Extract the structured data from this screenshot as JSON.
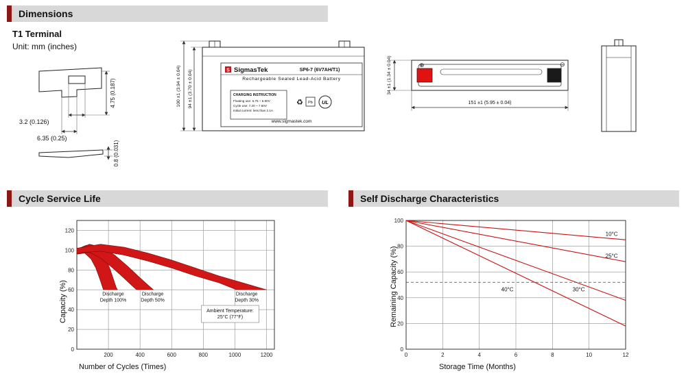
{
  "headers": {
    "dimensions": "Dimensions",
    "cycle": "Cycle Service Life",
    "self_discharge": "Self Discharge Characteristics"
  },
  "dimensions": {
    "terminal_type": "T1 Terminal",
    "unit": "Unit: mm (inches)",
    "terminal": {
      "notch_width": "3.2 (0.126)",
      "tab_width": "6.35 (0.25)",
      "tab_height": "4.75 (0.187)",
      "thickness": "0.8 (0.031)"
    },
    "front_view": {
      "logo_letter": "S",
      "brand": "SigmasTek",
      "model": "SP6-7 (6V7AH/T1)",
      "subtitle": "Rechargeable Sealed Lead-Acid Battery",
      "charging_title": "CHARGING INSTRUCTION",
      "charging_line1": "Floating use: 6.75 ~ 6.90V",
      "charging_line2": "Cycle use: 7.20 ~ 7.50V",
      "charging_line3": "Initial current: less than 2.1A",
      "website": "www.sigmastek.com",
      "pb": "Pb",
      "ul": "UL",
      "height_dim": "100 ±1 (3.94 ± 0.04)",
      "body_height_dim": "94 ±1 (3.70 ± 0.04)"
    },
    "top_view": {
      "length_dim": "151 ±1 (5.95 ± 0.04)",
      "width_dim": "34 ±1 (1.34 ± 0.04)",
      "plus": "⊕",
      "minus": "⊖"
    }
  },
  "chart_data": [
    {
      "id": "cycle-chart",
      "type": "area",
      "title": "Cycle Service Life",
      "xlabel": "Number of Cycles (Times)",
      "ylabel": "Capacity (%)",
      "xlim": [
        0,
        1250
      ],
      "ylim": [
        0,
        130
      ],
      "xticks": [
        200,
        400,
        600,
        800,
        1000,
        1200
      ],
      "yticks": [
        0,
        20,
        40,
        60,
        80,
        100,
        120
      ],
      "grid": true,
      "fill_color": "#d01616",
      "bands": [
        {
          "name": "Discharge Depth 100%",
          "upper": [
            [
              0,
              101
            ],
            [
              60,
              105
            ],
            [
              120,
              104
            ],
            [
              170,
              96
            ],
            [
              210,
              81
            ],
            [
              250,
              62
            ],
            [
              258,
              60
            ]
          ],
          "lower": [
            [
              0,
              96
            ],
            [
              50,
              97
            ],
            [
              90,
              91
            ],
            [
              120,
              82
            ],
            [
              145,
              71
            ],
            [
              168,
              60
            ]
          ]
        },
        {
          "name": "Discharge Depth 50%",
          "upper": [
            [
              0,
              101
            ],
            [
              80,
              106
            ],
            [
              160,
              103
            ],
            [
              240,
              95
            ],
            [
              320,
              84
            ],
            [
              400,
              72
            ],
            [
              470,
              62
            ],
            [
              485,
              60
            ]
          ],
          "lower": [
            [
              0,
              96
            ],
            [
              80,
              98
            ],
            [
              150,
              92
            ],
            [
              220,
              83
            ],
            [
              290,
              73
            ],
            [
              350,
              64
            ],
            [
              378,
              60
            ]
          ]
        },
        {
          "name": "Discharge Depth 30%",
          "upper": [
            [
              0,
              102
            ],
            [
              150,
              106
            ],
            [
              300,
              103
            ],
            [
              450,
              97
            ],
            [
              600,
              90
            ],
            [
              750,
              82
            ],
            [
              900,
              74
            ],
            [
              1050,
              67
            ],
            [
              1200,
              60
            ]
          ],
          "lower": [
            [
              0,
              97
            ],
            [
              150,
              99
            ],
            [
              300,
              95
            ],
            [
              450,
              89
            ],
            [
              600,
              82
            ],
            [
              750,
              74
            ],
            [
              900,
              67
            ],
            [
              1010,
              60
            ]
          ]
        }
      ],
      "annotations": [
        {
          "x": 230,
          "y": 55,
          "lines": [
            "Discharge",
            "Depth 100%"
          ],
          "box": false
        },
        {
          "x": 480,
          "y": 55,
          "lines": [
            "Discharge",
            "Depth 50%"
          ],
          "box": false
        },
        {
          "x": 1075,
          "y": 55,
          "lines": [
            "Discharge",
            "Depth 30%"
          ],
          "box": false
        },
        {
          "x": 970,
          "y": 38,
          "lines": [
            "Ambient Temperature:",
            "25°C (77°F)"
          ],
          "box": true
        }
      ]
    },
    {
      "id": "sd-chart",
      "type": "line",
      "title": "Self Discharge Characteristics",
      "xlabel": "Storage Time (Months)",
      "ylabel": "Remaining Capacity (%)",
      "xlim": [
        0,
        12
      ],
      "ylim": [
        0,
        100
      ],
      "xticks": [
        0,
        2,
        4,
        6,
        8,
        10,
        12
      ],
      "yticks": [
        0,
        20,
        40,
        60,
        80,
        100
      ],
      "grid": true,
      "line_color": "#cc1111",
      "series": [
        {
          "name": "10°C",
          "points": [
            [
              0,
              100
            ],
            [
              12,
              85
            ]
          ]
        },
        {
          "name": "25°C",
          "points": [
            [
              0,
              100
            ],
            [
              12,
              68
            ]
          ]
        },
        {
          "name": "30°C",
          "points": [
            [
              0,
              100
            ],
            [
              12,
              38
            ]
          ]
        },
        {
          "name": "40°C",
          "points": [
            [
              0,
              100
            ],
            [
              12,
              18
            ]
          ]
        }
      ],
      "dashed_y": 52,
      "labels": [
        {
          "text": "10°C",
          "x": 10.9,
          "y": 88
        },
        {
          "text": "25°C",
          "x": 10.9,
          "y": 71
        },
        {
          "text": "40°C",
          "x": 5.2,
          "y": 45
        },
        {
          "text": "30°C",
          "x": 9.1,
          "y": 45
        }
      ]
    }
  ]
}
